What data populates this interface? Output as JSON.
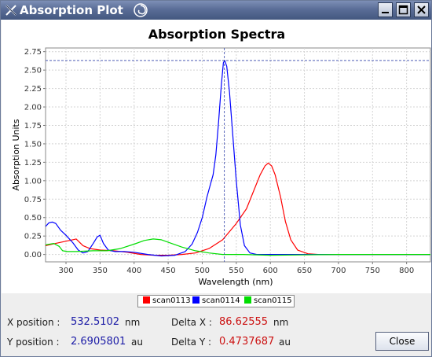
{
  "window": {
    "title": "Absorption Plot"
  },
  "chart_data": {
    "type": "line",
    "title": "Absorption Spectra",
    "xlabel": "Wavelength (nm)",
    "ylabel": "Absorption Units",
    "xlim": [
      270,
      835
    ],
    "ylim": [
      -0.1,
      2.8
    ],
    "xticks": [
      "300",
      "350",
      "400",
      "450",
      "500",
      "550",
      "600",
      "650",
      "700",
      "750",
      "800"
    ],
    "yticks": [
      "0.00",
      "0.25",
      "0.50",
      "0.75",
      "1.00",
      "1.25",
      "1.50",
      "1.75",
      "2.00",
      "2.25",
      "2.50",
      "2.75"
    ],
    "grid": true,
    "legend": "bottom",
    "crosshair": {
      "x": 532.5,
      "y": 2.63
    },
    "series": [
      {
        "name": "scan0113",
        "color": "#ff0000",
        "x": [
          270,
          290,
          305,
          315,
          325,
          335,
          350,
          370,
          390,
          410,
          430,
          450,
          470,
          490,
          510,
          530,
          550,
          565,
          575,
          585,
          592,
          597,
          602,
          607,
          615,
          622,
          630,
          640,
          655,
          670,
          700,
          835
        ],
        "y": [
          0.12,
          0.16,
          0.19,
          0.21,
          0.12,
          0.08,
          0.06,
          0.05,
          0.03,
          0.0,
          -0.01,
          -0.01,
          0.0,
          0.02,
          0.08,
          0.2,
          0.42,
          0.62,
          0.85,
          1.08,
          1.2,
          1.24,
          1.2,
          1.08,
          0.78,
          0.45,
          0.2,
          0.06,
          0.01,
          0.0,
          0.0,
          0.0
        ]
      },
      {
        "name": "scan0114",
        "color": "#0000ff",
        "x": [
          270,
          275,
          280,
          285,
          292,
          300,
          310,
          318,
          325,
          332,
          340,
          346,
          350,
          355,
          362,
          372,
          385,
          400,
          420,
          440,
          460,
          475,
          485,
          493,
          500,
          507,
          512,
          516,
          520,
          524,
          528,
          531,
          533,
          536,
          540,
          545,
          550,
          556,
          562,
          570,
          580,
          600,
          835
        ],
        "y": [
          0.38,
          0.43,
          0.44,
          0.42,
          0.33,
          0.26,
          0.16,
          0.06,
          0.02,
          0.04,
          0.15,
          0.24,
          0.26,
          0.15,
          0.06,
          0.04,
          0.04,
          0.03,
          0.0,
          -0.02,
          -0.01,
          0.04,
          0.14,
          0.3,
          0.5,
          0.78,
          0.95,
          1.08,
          1.35,
          1.8,
          2.3,
          2.6,
          2.63,
          2.55,
          2.2,
          1.6,
          1.0,
          0.4,
          0.12,
          0.02,
          0.0,
          0.0,
          0.0
        ]
      },
      {
        "name": "scan0115",
        "color": "#00dd00",
        "x": [
          270,
          282,
          290,
          295,
          302,
          315,
          340,
          360,
          380,
          400,
          415,
          428,
          440,
          455,
          470,
          490,
          510,
          530,
          560,
          600,
          700,
          835
        ],
        "y": [
          0.13,
          0.15,
          0.11,
          0.05,
          0.04,
          0.04,
          0.05,
          0.05,
          0.08,
          0.14,
          0.19,
          0.21,
          0.2,
          0.15,
          0.1,
          0.05,
          0.02,
          0.0,
          0.0,
          -0.01,
          0.0,
          0.0
        ]
      }
    ]
  },
  "info": {
    "x_label": "X position :",
    "x_value": "532.5102",
    "x_unit": "nm",
    "y_label": "Y position :",
    "y_value": "2.6905801",
    "y_unit": "au",
    "dx_label": "Delta X :",
    "dx_value": "86.62555",
    "dx_unit": "nm",
    "dy_label": "Delta Y :",
    "dy_value": "0.4737687",
    "dy_unit": "au"
  },
  "buttons": {
    "close": "Close"
  }
}
